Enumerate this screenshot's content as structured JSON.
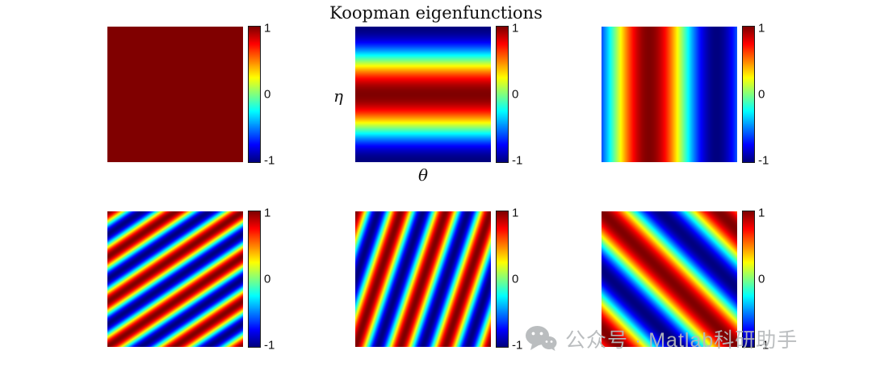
{
  "figure": {
    "background": "#ffffff"
  },
  "watermark": {
    "icon": "wechat-icon",
    "text": "公众号 · Matlab科研助手",
    "color": "#b7babc"
  },
  "chart_data": {
    "type": "heatmap",
    "title": "Koopman eigenfunctions",
    "colormap": "jet",
    "layout": "2 rows x 3 columns of square heatmaps, each with its own colorbar",
    "value_range": [
      -1,
      1
    ],
    "colorbar_ticks": [
      "1",
      "0",
      "-1"
    ],
    "axis_labels": {
      "x": "θ",
      "y": "η"
    },
    "subplots": [
      {
        "id": "eigenfunction-1",
        "row": 0,
        "col": 0,
        "pattern": "constant",
        "value": 1,
        "description": "constant eigenfunction, uniform dark red (+1)"
      },
      {
        "id": "eigenfunction-2",
        "row": 0,
        "col": 1,
        "pattern": "plane-wave",
        "kx": 0,
        "ky": 1,
        "phase_deg": 180,
        "xlabel": "θ",
        "ylabel": "η",
        "description": "horizontal stripes: blue at top and bottom, red band through middle"
      },
      {
        "id": "eigenfunction-3",
        "row": 0,
        "col": 2,
        "pattern": "plane-wave",
        "kx": 1,
        "ky": 0,
        "phase_deg": -126,
        "description": "vertical stripes: red band left of center, dark blue band right of center"
      },
      {
        "id": "eigenfunction-4",
        "row": 1,
        "col": 0,
        "pattern": "plane-wave",
        "kx": 2,
        "ky": 3,
        "phase_deg": 0,
        "description": "diagonal stripes rising to the upper right, ~5 red/blue bands"
      },
      {
        "id": "eigenfunction-5",
        "row": 1,
        "col": 1,
        "pattern": "plane-wave",
        "kx": 3,
        "ky": 1,
        "phase_deg": 0,
        "description": "steep near-vertical diagonal stripes, ~4 red/blue bands"
      },
      {
        "id": "eigenfunction-6",
        "row": 1,
        "col": 2,
        "pattern": "plane-wave",
        "kx": 1.15,
        "ky": -1.15,
        "phase_deg": 0,
        "description": "wide diagonal stripes from upper-left to lower-right, red band along main diagonal"
      }
    ]
  }
}
